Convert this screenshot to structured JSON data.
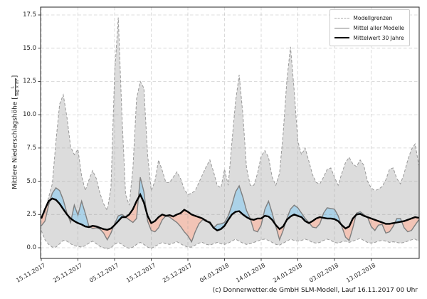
{
  "footer": {
    "text": "(c) Donnerwetter.de GmbH SLM-Modell, Lauf 16.11.2017 00 Uhr"
  },
  "chart_data": {
    "type": "line",
    "title": "",
    "xlabel": "",
    "ylabel": {
      "text": "Mittlere Niederschlagshöhe",
      "bracket_open": "[",
      "unit_numerator": "L",
      "unit_denominator": "Tag × m²",
      "bracket_close": "]"
    },
    "ylim": [
      -0.8,
      18.1
    ],
    "yticks": [
      "0.0",
      "2.5",
      "5.0",
      "7.5",
      "10.0",
      "12.5",
      "15.0",
      "17.5"
    ],
    "x_start": "15.11.2017",
    "x_step_days": 1,
    "x_tick_labels": [
      "15.11.2017",
      "25.11.2017",
      "05.12.2017",
      "15.12.2017",
      "25.12.2017",
      "04.01.2018",
      "14.01.2018",
      "24.01.2018",
      "03.02.2018",
      "13.02.2018"
    ],
    "x_tick_days": [
      0,
      10,
      20,
      30,
      40,
      50,
      60,
      70,
      80,
      90
    ],
    "grid": true,
    "legend_position": "upper right",
    "legend": [
      {
        "label": "Modellgrenzen",
        "style": "dashed",
        "color": "#aaaaaa"
      },
      {
        "label": "Mittel aller Modelle",
        "style": "solid",
        "color": "#7f7f7f"
      },
      {
        "label": "Mittelwert 30 Jahre",
        "style": "thick",
        "color": "#000000"
      }
    ],
    "colors": {
      "band_fill": "#dcdcdc",
      "band_edge": "#999999",
      "above_mean_fill": "#abd2e8",
      "below_mean_fill": "#f2c4b6",
      "mean_line": "#7f7f7f",
      "climate_line": "#000000",
      "grid_line": "#9a9a9a",
      "frame": "#262626"
    },
    "series": [
      {
        "name": "Modellgrenzen (obere Grenze)",
        "role": "upper",
        "values": [
          2.3,
          2.6,
          3.8,
          4.8,
          8.0,
          10.8,
          11.5,
          9.8,
          7.6,
          7.0,
          7.4,
          5.4,
          4.3,
          5.1,
          5.8,
          5.2,
          4.1,
          3.3,
          2.8,
          4.5,
          13.0,
          17.3,
          10.0,
          4.0,
          3.2,
          6.0,
          11.2,
          12.5,
          12.0,
          7.0,
          4.3,
          5.0,
          6.6,
          5.8,
          4.9,
          4.9,
          5.3,
          5.7,
          5.2,
          4.4,
          4.0,
          4.1,
          4.3,
          4.9,
          5.5,
          6.1,
          6.6,
          5.7,
          4.7,
          4.5,
          5.9,
          4.7,
          7.9,
          11.0,
          13.0,
          10.0,
          6.0,
          4.7,
          4.7,
          5.6,
          6.9,
          7.3,
          6.8,
          5.3,
          4.7,
          5.6,
          8.6,
          12.6,
          15.1,
          11.8,
          8.0,
          7.0,
          7.5,
          6.5,
          5.5,
          4.9,
          4.8,
          5.3,
          5.9,
          6.0,
          5.3,
          4.7,
          5.6,
          6.4,
          6.8,
          6.3,
          6.1,
          6.6,
          6.2,
          5.0,
          4.5,
          4.3,
          4.4,
          4.6,
          5.1,
          5.9,
          6.0,
          5.2,
          4.8,
          5.6,
          6.6,
          7.4,
          7.8,
          6.2
        ]
      },
      {
        "name": "Modellgrenzen (untere Grenze)",
        "role": "lower",
        "values": [
          1.3,
          0.6,
          0.25,
          0.05,
          0.05,
          0.3,
          0.55,
          0.5,
          0.3,
          0.15,
          0.1,
          0.05,
          0.15,
          0.35,
          0.5,
          0.3,
          0.1,
          0.0,
          -0.1,
          0.0,
          0.25,
          0.4,
          0.25,
          0.05,
          -0.05,
          0.05,
          0.25,
          0.4,
          0.25,
          0.05,
          -0.05,
          0.1,
          0.25,
          0.4,
          0.3,
          0.25,
          0.35,
          0.45,
          0.3,
          0.15,
          0.05,
          0.05,
          0.2,
          0.35,
          0.4,
          0.25,
          0.2,
          0.3,
          0.4,
          0.3,
          0.25,
          0.35,
          0.5,
          0.65,
          0.5,
          0.35,
          0.25,
          0.3,
          0.4,
          0.5,
          0.6,
          0.65,
          0.55,
          0.4,
          0.25,
          0.2,
          0.35,
          0.5,
          0.65,
          0.55,
          0.5,
          0.55,
          0.65,
          0.55,
          0.4,
          0.35,
          0.4,
          0.55,
          0.65,
          0.55,
          0.4,
          0.35,
          0.45,
          0.5,
          0.4,
          0.5,
          0.6,
          0.7,
          0.55,
          0.4,
          0.35,
          0.4,
          0.5,
          0.55,
          0.5,
          0.4,
          0.45,
          0.4,
          0.35,
          0.4,
          0.5,
          0.6,
          0.65,
          0.5
        ]
      },
      {
        "name": "Mittel aller Modelle",
        "role": "mean",
        "values": [
          1.65,
          2.0,
          3.2,
          4.1,
          4.5,
          4.3,
          3.6,
          2.6,
          1.9,
          3.2,
          2.45,
          3.5,
          2.6,
          1.6,
          1.45,
          1.5,
          1.4,
          1.1,
          0.6,
          1.1,
          1.8,
          2.4,
          2.5,
          2.3,
          2.1,
          1.9,
          2.2,
          5.3,
          4.2,
          2.0,
          1.3,
          1.2,
          1.5,
          2.1,
          2.4,
          2.3,
          2.1,
          1.9,
          1.6,
          1.2,
          0.9,
          0.45,
          1.2,
          1.8,
          2.1,
          2.1,
          1.8,
          1.5,
          1.75,
          1.8,
          1.9,
          2.4,
          3.2,
          4.2,
          4.65,
          3.8,
          2.8,
          2.2,
          1.3,
          1.2,
          1.7,
          2.9,
          3.5,
          2.6,
          1.6,
          0.6,
          1.3,
          2.2,
          2.9,
          3.2,
          3.0,
          2.6,
          2.2,
          1.9,
          1.55,
          1.5,
          1.8,
          2.6,
          3.0,
          2.95,
          2.9,
          2.4,
          1.6,
          0.8,
          0.55,
          1.5,
          2.6,
          2.7,
          2.5,
          2.3,
          1.6,
          1.3,
          1.7,
          1.75,
          1.1,
          1.2,
          1.6,
          2.2,
          2.2,
          1.5,
          1.2,
          1.3,
          1.7,
          2.1
        ]
      },
      {
        "name": "Mittelwert 30 Jahre",
        "role": "climate",
        "values": [
          2.2,
          2.9,
          3.5,
          3.7,
          3.6,
          3.3,
          2.9,
          2.5,
          2.2,
          2.0,
          1.85,
          1.75,
          1.6,
          1.55,
          1.65,
          1.6,
          1.5,
          1.4,
          1.35,
          1.45,
          1.7,
          2.0,
          2.3,
          2.3,
          2.5,
          2.9,
          3.5,
          4.0,
          3.4,
          2.4,
          1.85,
          2.0,
          2.3,
          2.5,
          2.4,
          2.45,
          2.35,
          2.5,
          2.6,
          2.85,
          2.7,
          2.5,
          2.4,
          2.3,
          2.2,
          2.0,
          1.9,
          1.5,
          1.3,
          1.4,
          1.65,
          2.1,
          2.5,
          2.7,
          2.75,
          2.5,
          2.3,
          2.15,
          2.1,
          2.2,
          2.2,
          2.4,
          2.35,
          2.1,
          1.7,
          1.4,
          1.6,
          2.1,
          2.35,
          2.5,
          2.4,
          2.3,
          2.0,
          1.85,
          2.0,
          2.2,
          2.3,
          2.25,
          2.2,
          2.2,
          2.15,
          2.0,
          1.7,
          1.45,
          1.6,
          2.2,
          2.5,
          2.55,
          2.4,
          2.3,
          2.2,
          2.1,
          2.0,
          1.9,
          1.8,
          1.8,
          1.85,
          1.9,
          1.95,
          2.0,
          2.1,
          2.2,
          2.3,
          2.25
        ]
      }
    ]
  }
}
